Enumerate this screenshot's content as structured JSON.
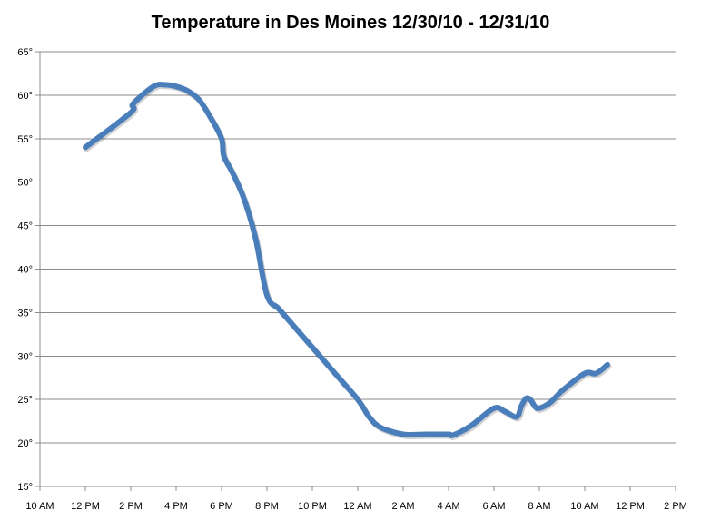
{
  "chart_data": {
    "type": "line",
    "title": "Temperature in Des Moines 12/30/10 - 12/31/10",
    "xlabel": "",
    "ylabel": "",
    "xlim": [
      10,
      38
    ],
    "ylim": [
      15,
      65
    ],
    "grid": "horizontal",
    "legend": "none",
    "x_unit": "hour (10 = 10 AM 12/30/10, 24 = 12 AM, 38 = 2 PM 12/31/10)",
    "x_ticks": [
      {
        "x": 10,
        "label": "10 AM"
      },
      {
        "x": 12,
        "label": "12 PM"
      },
      {
        "x": 14,
        "label": "2 PM"
      },
      {
        "x": 16,
        "label": "4 PM"
      },
      {
        "x": 18,
        "label": "6 PM"
      },
      {
        "x": 20,
        "label": "8 PM"
      },
      {
        "x": 22,
        "label": "10 PM"
      },
      {
        "x": 24,
        "label": "12 AM"
      },
      {
        "x": 26,
        "label": "2 AM"
      },
      {
        "x": 28,
        "label": "4 AM"
      },
      {
        "x": 30,
        "label": "6 AM"
      },
      {
        "x": 32,
        "label": "8 AM"
      },
      {
        "x": 34,
        "label": "10 AM"
      },
      {
        "x": 36,
        "label": "12 PM"
      },
      {
        "x": 38,
        "label": "2 PM"
      }
    ],
    "y_ticks": [
      {
        "y": 15,
        "label": "15°"
      },
      {
        "y": 20,
        "label": "20°"
      },
      {
        "y": 25,
        "label": "25°"
      },
      {
        "y": 30,
        "label": "30°"
      },
      {
        "y": 35,
        "label": "35°"
      },
      {
        "y": 40,
        "label": "40°"
      },
      {
        "y": 45,
        "label": "45°"
      },
      {
        "y": 50,
        "label": "50°"
      },
      {
        "y": 55,
        "label": "55°"
      },
      {
        "y": 60,
        "label": "60°"
      },
      {
        "y": 65,
        "label": "65°"
      }
    ],
    "series": [
      {
        "color": "#4a7ebb",
        "points": [
          [
            12.0,
            54.0
          ],
          [
            14.0,
            58.0
          ],
          [
            14.1,
            59.0
          ],
          [
            15.0,
            61.0
          ],
          [
            15.5,
            61.2
          ],
          [
            16.0,
            61.0
          ],
          [
            16.5,
            60.5
          ],
          [
            17.0,
            59.5
          ],
          [
            17.5,
            57.5
          ],
          [
            18.0,
            55.0
          ],
          [
            18.1,
            53.0
          ],
          [
            18.5,
            51.0
          ],
          [
            19.0,
            48.0
          ],
          [
            19.5,
            43.5
          ],
          [
            20.0,
            37.0
          ],
          [
            20.5,
            35.5
          ],
          [
            21.0,
            34.0
          ],
          [
            22.0,
            31.0
          ],
          [
            23.0,
            28.0
          ],
          [
            24.0,
            25.0
          ],
          [
            24.5,
            23.0
          ],
          [
            25.0,
            21.8
          ],
          [
            26.0,
            21.0
          ],
          [
            27.0,
            21.0
          ],
          [
            28.0,
            21.0
          ],
          [
            28.2,
            20.9
          ],
          [
            29.0,
            22.0
          ],
          [
            30.0,
            24.0
          ],
          [
            30.5,
            23.6
          ],
          [
            31.0,
            23.0
          ],
          [
            31.2,
            24.2
          ],
          [
            31.4,
            25.1
          ],
          [
            31.6,
            25.0
          ],
          [
            31.8,
            24.2
          ],
          [
            32.0,
            24.0
          ],
          [
            32.5,
            24.7
          ],
          [
            33.0,
            26.0
          ],
          [
            34.0,
            28.0
          ],
          [
            34.5,
            28.0
          ],
          [
            35.0,
            29.0
          ]
        ]
      }
    ]
  }
}
